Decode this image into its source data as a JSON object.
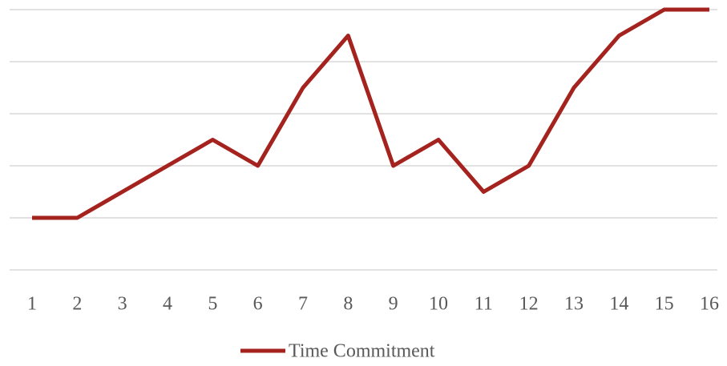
{
  "chart_data": {
    "type": "line",
    "categories": [
      "1",
      "2",
      "3",
      "4",
      "5",
      "6",
      "7",
      "8",
      "9",
      "10",
      "11",
      "12",
      "13",
      "14",
      "15",
      "16"
    ],
    "series": [
      {
        "name": "Time Commitment",
        "color": "#a5231f",
        "values": [
          1,
          1,
          1.5,
          2,
          2.5,
          2,
          3.5,
          4.5,
          2,
          2.5,
          1.5,
          2,
          3.5,
          4.5,
          5,
          5
        ]
      }
    ],
    "ylim": [
      0,
      5
    ],
    "yticks": [
      0,
      1,
      2,
      3,
      4,
      5
    ],
    "grid": true
  }
}
